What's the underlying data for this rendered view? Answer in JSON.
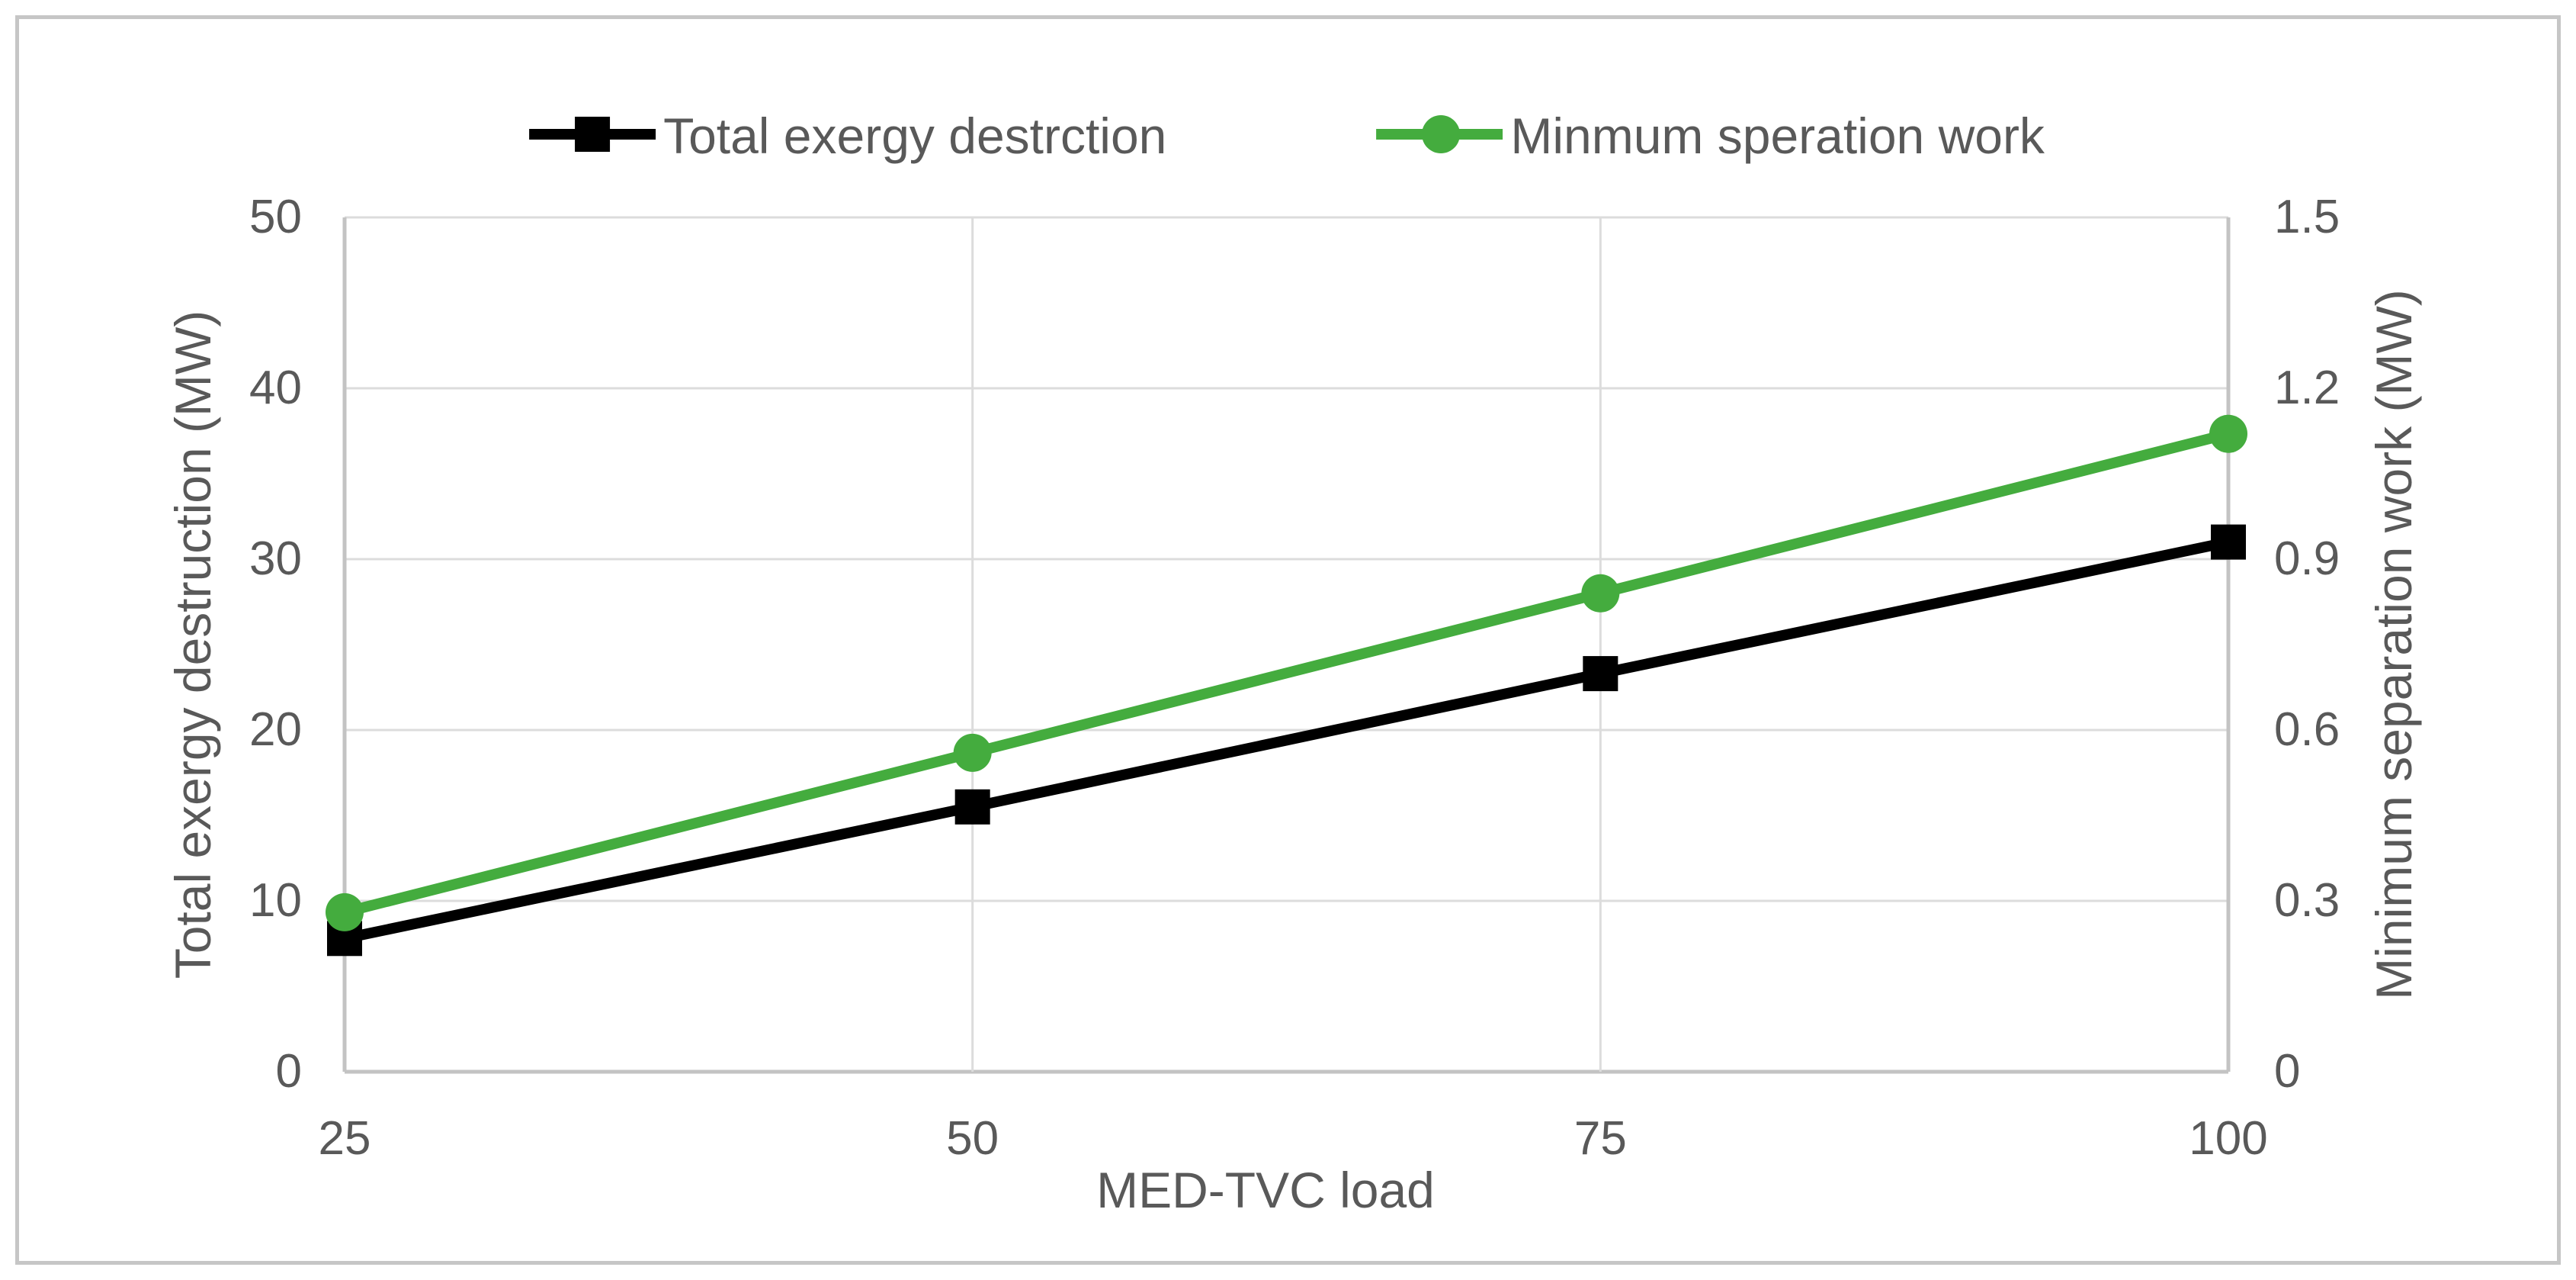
{
  "chart_data": {
    "type": "line",
    "x": [
      "25",
      "50",
      "75",
      "100"
    ],
    "xlabel": "MED-TVC load",
    "ylabel_left": "Total exergy destruction (MW)",
    "ylabel_right": "Minimum separation work (MW)",
    "ylim_left": [
      0,
      50
    ],
    "yticks_left": [
      "0",
      "10",
      "20",
      "30",
      "40",
      "50"
    ],
    "ylim_right": [
      0,
      1.5
    ],
    "yticks_right": [
      "0",
      "0.3",
      "0.6",
      "0.9",
      "1.2",
      "1.5"
    ],
    "grid": "horizontal gridlines each 10 units; vertical gridlines at interior x ticks; plot bounded by gray axis lines left/right/bottom and top gridline",
    "legend_position": "top-center",
    "series": [
      {
        "name": "Total exergy destrction",
        "axis": "left",
        "color": "#000000",
        "marker": "square",
        "values": [
          7.8,
          15.5,
          23.3,
          31.0
        ]
      },
      {
        "name": "Minmum speration work",
        "axis": "right",
        "color": "#44AC3E",
        "marker": "circle",
        "values": [
          0.28,
          0.56,
          0.84,
          1.12
        ]
      }
    ],
    "colors": {
      "grid": "#dcdcdc",
      "axis_line": "#c3c3c3",
      "text": "#595959",
      "figure_border": "#c6c6c6",
      "background": "#ffffff"
    }
  }
}
